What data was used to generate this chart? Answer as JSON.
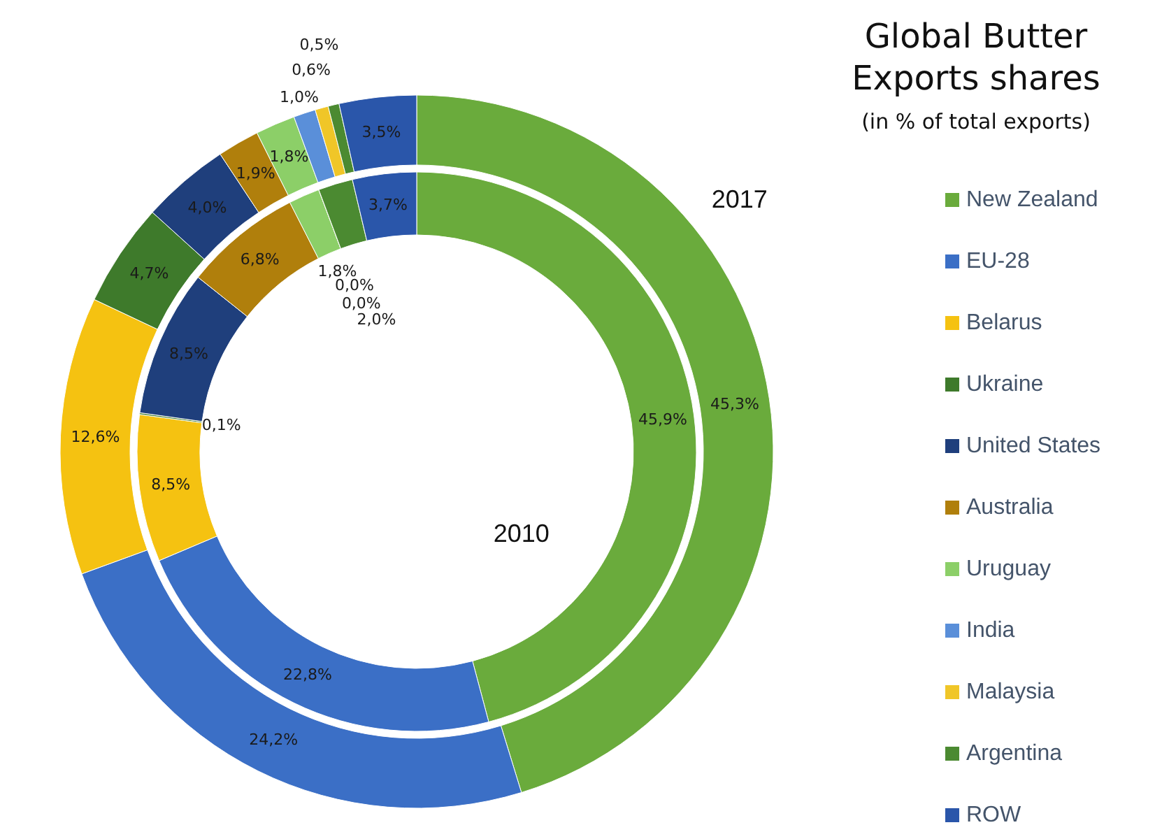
{
  "chart_data": {
    "type": "donut",
    "title": "Global Butter Exports shares",
    "subtitle": "(in % of total exports)",
    "categories": [
      "New Zealand",
      "EU-28",
      "Belarus",
      "Ukraine",
      "United States",
      "Australia",
      "Uruguay",
      "India",
      "Malaysia",
      "Argentina",
      "ROW"
    ],
    "colors": [
      "#6aab3c",
      "#3b6fc6",
      "#f5c211",
      "#3e7a2b",
      "#1f3f7c",
      "#b07f0c",
      "#8ccf68",
      "#5a8fd9",
      "#f0c628",
      "#4b8a31",
      "#2a56aa"
    ],
    "series": [
      {
        "name": "2017",
        "values": [
          45.3,
          24.2,
          12.6,
          4.7,
          4.0,
          1.9,
          1.8,
          1.0,
          0.6,
          0.5,
          3.5
        ],
        "value_labels": [
          "45,3%",
          "24,2%",
          "12,6%",
          "4,7%",
          "4,0%",
          "1,9%",
          "1,8%",
          "1,0%",
          "0,6%",
          "0,5%",
          "3,5%"
        ]
      },
      {
        "name": "2010",
        "values": [
          45.9,
          22.8,
          8.5,
          0.1,
          8.5,
          6.8,
          1.8,
          0.0,
          0.0,
          2.0,
          3.7
        ],
        "value_labels": [
          "45,9%",
          "22,8%",
          "8,5%",
          "0,1%",
          "8,5%",
          "6,8%",
          "1,8%",
          "0,0%",
          "0,0%",
          "2,0%",
          "3,7%"
        ]
      }
    ],
    "legend": "right"
  }
}
